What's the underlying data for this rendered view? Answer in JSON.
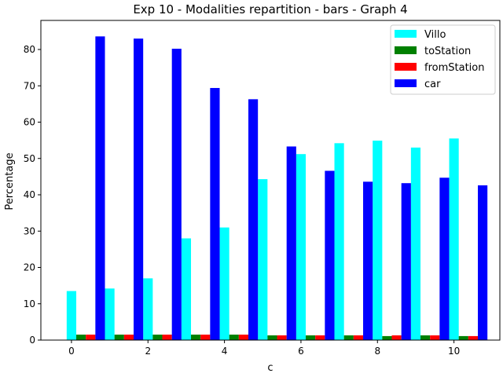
{
  "chart_data": {
    "type": "bar",
    "title": "Exp 10 - Modalities repartition - bars - Graph 4",
    "xlabel": "c",
    "ylabel": "Percentage",
    "x": [
      0,
      1,
      2,
      3,
      4,
      5,
      6,
      7,
      8,
      9,
      10
    ],
    "xlim": [
      -0.8,
      11.2
    ],
    "ylim": [
      0,
      88
    ],
    "xticks": [
      0,
      2,
      4,
      6,
      8,
      10
    ],
    "yticks": [
      0,
      10,
      20,
      30,
      40,
      50,
      60,
      70,
      80
    ],
    "grid": false,
    "legend_position": "top-right",
    "series": [
      {
        "name": "Villo",
        "color": "#00ffff",
        "values": [
          13.5,
          14.2,
          17.0,
          28.0,
          31.0,
          44.3,
          51.2,
          54.2,
          54.9,
          53.0,
          55.5
        ]
      },
      {
        "name": "toStation",
        "color": "#008000",
        "values": [
          1.5,
          1.5,
          1.5,
          1.5,
          1.5,
          1.3,
          1.3,
          1.3,
          1.1,
          1.3,
          1.1
        ]
      },
      {
        "name": "fromStation",
        "color": "#ff0000",
        "values": [
          1.5,
          1.5,
          1.5,
          1.5,
          1.5,
          1.3,
          1.3,
          1.3,
          1.3,
          1.3,
          1.1
        ]
      },
      {
        "name": "car",
        "color": "#0000ff",
        "values": [
          83.6,
          83.0,
          80.2,
          69.4,
          66.3,
          53.3,
          46.6,
          43.6,
          43.2,
          44.7,
          42.6
        ]
      }
    ]
  }
}
